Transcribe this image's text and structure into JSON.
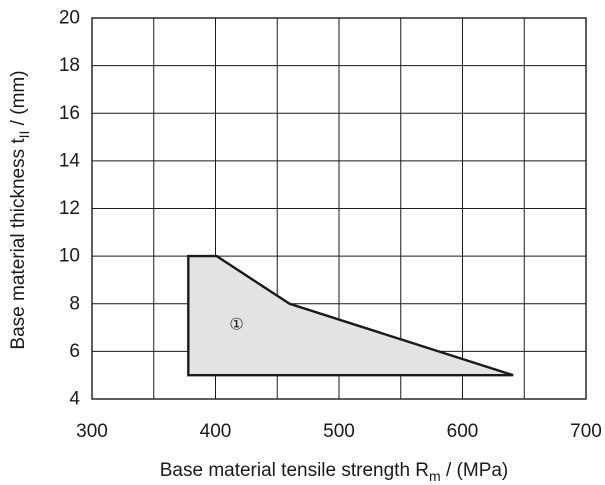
{
  "chart_data": {
    "type": "area",
    "title": "",
    "xlabel": {
      "main": "Base material tensile strength R",
      "sub": "m",
      "unit": " / (MPa)"
    },
    "ylabel": {
      "main": "Base material thickness t",
      "sub": "II",
      "unit": " / (mm)"
    },
    "xlim": [
      300,
      700
    ],
    "ylim": [
      4,
      20
    ],
    "x_ticks": [
      300,
      400,
      500,
      600,
      700
    ],
    "y_ticks": [
      4,
      6,
      8,
      10,
      12,
      14,
      16,
      18,
      20
    ],
    "x_gridlines": [
      300,
      350,
      400,
      450,
      500,
      550,
      600,
      650,
      700
    ],
    "y_gridlines": [
      4,
      6,
      8,
      10,
      12,
      14,
      16,
      18,
      20
    ],
    "grid": true,
    "series": [
      {
        "name": "",
        "marker": "①",
        "marker_position": [
          417,
          7.1
        ],
        "points": [
          {
            "x": 378,
            "y": 5
          },
          {
            "x": 378,
            "y": 10
          },
          {
            "x": 401,
            "y": 10
          },
          {
            "x": 460,
            "y": 8
          },
          {
            "x": 641,
            "y": 5
          }
        ]
      }
    ],
    "colors": {
      "fill": "#e3e3e3",
      "outline": "#1a1a1a",
      "grid": "#1a1a1a"
    }
  }
}
